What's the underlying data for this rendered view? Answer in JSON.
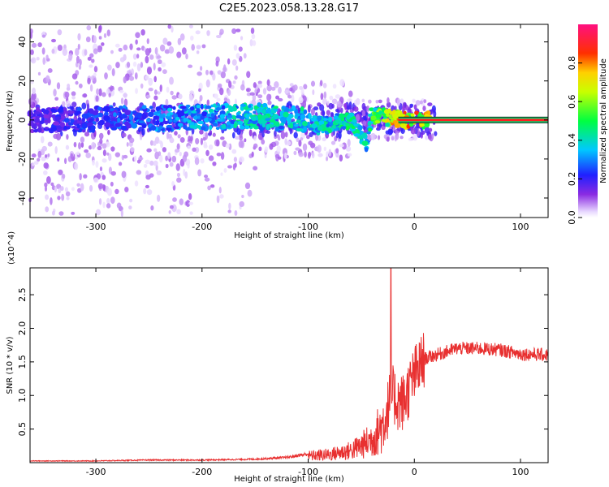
{
  "chart_data": [
    {
      "type": "heatmap",
      "title": "C2E5.2023.058.13.28.G17",
      "xlabel": "Height of straight line (km)",
      "ylabel": "Frequency (Hz)",
      "xlim": [
        -362,
        126
      ],
      "ylim": [
        -50,
        49
      ],
      "xticks": [
        -300,
        -200,
        -100,
        0,
        100
      ],
      "yticks": [
        -40,
        -20,
        0,
        20,
        40
      ],
      "colorbar": {
        "label": "Normalized spectral amplitude",
        "range": [
          0.0,
          1.0
        ],
        "ticks": [
          0.0,
          0.2,
          0.4,
          0.6,
          0.8
        ],
        "colormap": "rainbow (white-violet-blue-cyan-green-yellow-red-pink)"
      },
      "ridge": {
        "description": "dominant spectral peak near 0 Hz",
        "points": [
          {
            "x": -360,
            "y": 0,
            "amp": 0.2
          },
          {
            "x": -230,
            "y": 1,
            "amp": 0.35
          },
          {
            "x": -150,
            "y": 2,
            "amp": 0.45
          },
          {
            "x": -100,
            "y": 0,
            "amp": 0.45
          },
          {
            "x": -90,
            "y": -3,
            "amp": 0.45
          },
          {
            "x": -60,
            "y": 0,
            "amp": 0.5
          },
          {
            "x": -45,
            "y": -12,
            "amp": 0.45
          },
          {
            "x": -40,
            "y": 3,
            "amp": 0.55
          },
          {
            "x": -20,
            "y": 1,
            "amp": 0.8
          },
          {
            "x": 0,
            "y": 0,
            "amp": 0.85
          },
          {
            "x": 126,
            "y": 0,
            "amp": 0.9
          }
        ]
      }
    },
    {
      "type": "line",
      "xlabel": "Height of straight line (km)",
      "ylabel": "SNR (10 * v/v)",
      "y_multiplier": "(x10^4)",
      "xlim": [
        -362,
        126
      ],
      "ylim": [
        0,
        2.9
      ],
      "xticks": [
        -300,
        -200,
        -100,
        0,
        100
      ],
      "yticks": [
        0.5,
        1.0,
        1.5,
        2.0,
        2.5
      ],
      "series": [
        {
          "color": "#e83030",
          "x": [
            -362,
            -300,
            -250,
            -200,
            -150,
            -120,
            -100,
            -80,
            -60,
            -50,
            -40,
            -30,
            -25,
            -22,
            -20,
            -15,
            -10,
            -5,
            0,
            10,
            20,
            30,
            40,
            60,
            80,
            100,
            126
          ],
          "y": [
            0.02,
            0.02,
            0.03,
            0.03,
            0.04,
            0.06,
            0.1,
            0.12,
            0.18,
            0.25,
            0.35,
            0.55,
            0.8,
            1.0,
            1.0,
            0.9,
            0.9,
            1.1,
            1.3,
            1.55,
            1.6,
            1.65,
            1.7,
            1.7,
            1.68,
            1.62,
            1.6
          ]
        }
      ],
      "annotations": [
        {
          "x": -22,
          "y": 2.9,
          "note": "sharp spike"
        }
      ]
    }
  ]
}
